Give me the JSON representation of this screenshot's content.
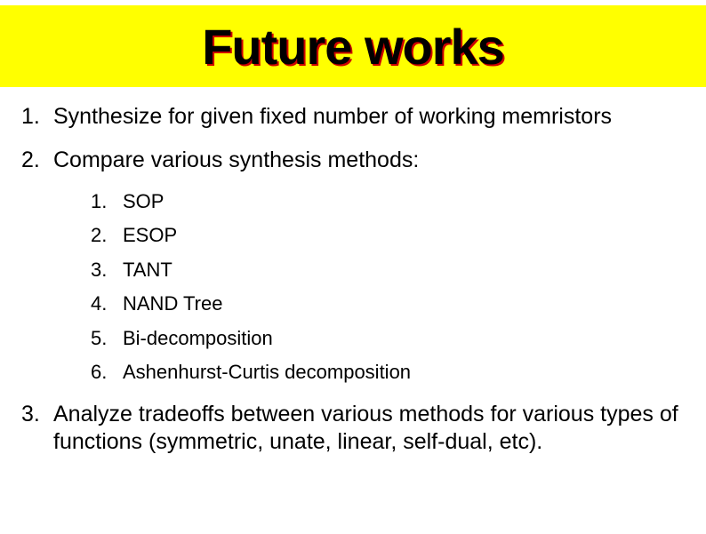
{
  "title": "Future works",
  "title_style": {
    "background_color": "#ffff00",
    "text_color": "#000000",
    "shadow_color": "#cc0000",
    "font_size": 56,
    "font_weight": "bold"
  },
  "main_items": [
    {
      "text": "Synthesize for given fixed number of working memristors"
    },
    {
      "text": "Compare various synthesis methods:",
      "sub_items": [
        "SOP",
        "ESOP",
        "TANT",
        "NAND Tree",
        "Bi-decomposition",
        "Ashenhurst-Curtis decomposition"
      ]
    },
    {
      "text": "Analyze tradeoffs between various methods for various types of functions (symmetric, unate, linear, self-dual, etc)."
    }
  ],
  "body_style": {
    "background_color": "#ffffff",
    "main_font_size": 25,
    "sub_font_size": 22,
    "text_color": "#000000"
  }
}
